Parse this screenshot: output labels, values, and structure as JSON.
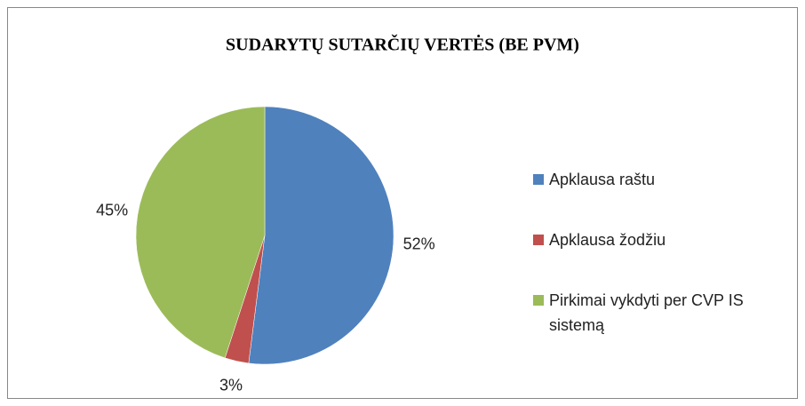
{
  "chart_data": {
    "type": "pie",
    "title": "SUDARYTŲ SUTARČIŲ VERTĖS (BE PVM)",
    "categories": [
      "Apklausa raštu",
      "Apklausa žodžiu",
      "Pirkimai vykdyti per CVP IS sistemą"
    ],
    "values": [
      52,
      3,
      45
    ],
    "value_labels": [
      "52%",
      "3%",
      "45%"
    ],
    "colors": [
      "#4f81bd",
      "#c0504d",
      "#9bbb59"
    ],
    "legend": "right"
  }
}
